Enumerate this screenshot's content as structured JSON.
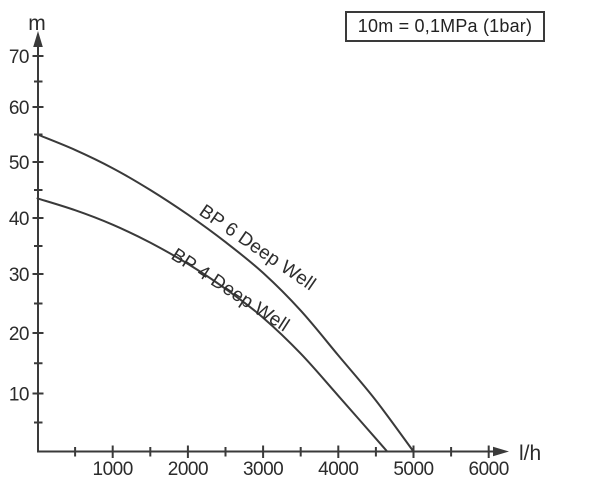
{
  "title_box": {
    "label": "10m = 0,1MPa (1bar)"
  },
  "axes": {
    "y_label": "m",
    "x_label": "l/h",
    "y_ticks_major": [
      10,
      20,
      30,
      40,
      50,
      60,
      70
    ],
    "y_ticks_minor": [
      5,
      15,
      25,
      35,
      45,
      55,
      65
    ],
    "x_ticks_major": [
      1000,
      2000,
      3000,
      4000,
      5000,
      6000
    ],
    "x_ticks_minor": [
      500,
      1500,
      2500,
      3500,
      4500,
      5500
    ]
  },
  "colors": {
    "stroke": "#3a3a3a",
    "text": "#2b2b2b",
    "background": "#ffffff"
  },
  "chart_data": {
    "type": "line",
    "title": "",
    "xlabel": "l/h",
    "ylabel": "m",
    "xlim": [
      0,
      6300
    ],
    "ylim": [
      0,
      75
    ],
    "grid": false,
    "legend_position": "on-curve",
    "annotation": "10m = 0,1MPa (1bar)",
    "series": [
      {
        "name": "BP 6 Deep Well",
        "points": [
          [
            0,
            55
          ],
          [
            500,
            52.2
          ],
          [
            1000,
            48.9
          ],
          [
            1500,
            45
          ],
          [
            2000,
            40.6
          ],
          [
            2500,
            35.7
          ],
          [
            3000,
            30.2
          ],
          [
            3500,
            23.8
          ],
          [
            4000,
            16.3
          ],
          [
            4500,
            8.8
          ],
          [
            5000,
            0
          ]
        ]
      },
      {
        "name": "BP 4 Deep Well",
        "points": [
          [
            0,
            43.5
          ],
          [
            500,
            41.4
          ],
          [
            1000,
            38.8
          ],
          [
            1500,
            35.6
          ],
          [
            2000,
            31.8
          ],
          [
            2500,
            27.5
          ],
          [
            3000,
            22.6
          ],
          [
            3500,
            16.6
          ],
          [
            4000,
            9.6
          ],
          [
            4650,
            0
          ]
        ]
      }
    ]
  }
}
